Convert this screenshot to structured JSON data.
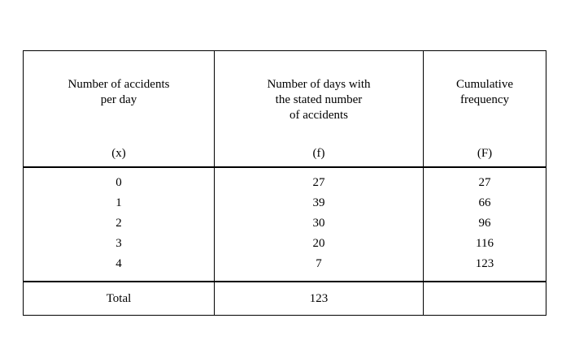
{
  "table": {
    "columns": [
      {
        "title": "Number of accidents\nper day",
        "symbol": "(x)"
      },
      {
        "title": "Number of days with\nthe stated number\nof accidents",
        "symbol": "(f)"
      },
      {
        "title": "Cumulative\nfrequency",
        "symbol": "(F)"
      }
    ],
    "rows": [
      {
        "x": "0",
        "f": "27",
        "F": "27"
      },
      {
        "x": "1",
        "f": "39",
        "F": "66"
      },
      {
        "x": "2",
        "f": "30",
        "F": "96"
      },
      {
        "x": "3",
        "f": "20",
        "F": "116"
      },
      {
        "x": "4",
        "f": "7",
        "F": "123"
      }
    ],
    "total": {
      "label": "Total",
      "f": "123",
      "F": ""
    }
  }
}
